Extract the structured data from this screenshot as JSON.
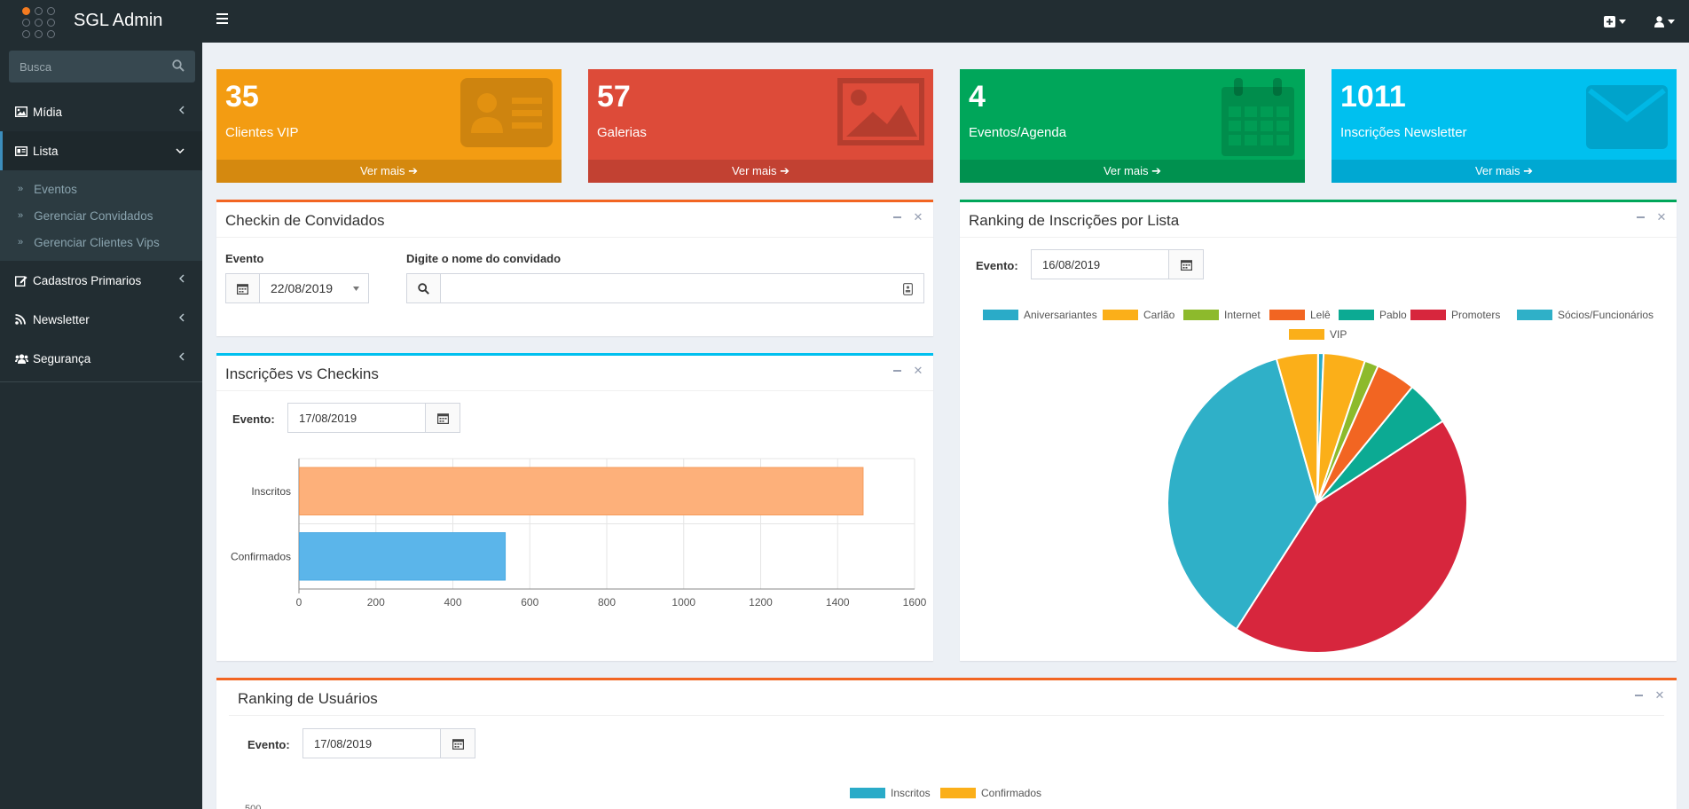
{
  "app": {
    "title": "SGL Admin"
  },
  "topnav": {
    "add_icon": "plus-square-icon",
    "user_icon": "user-icon"
  },
  "sidebar": {
    "search_placeholder": "Busca",
    "items": [
      {
        "label": "Mídia",
        "icon": "image-icon"
      },
      {
        "label": "Lista",
        "icon": "id-card-icon"
      },
      {
        "label": "Cadastros Primarios",
        "icon": "edit-icon"
      },
      {
        "label": "Newsletter",
        "icon": "rss-icon"
      },
      {
        "label": "Segurança",
        "icon": "users-icon"
      }
    ],
    "sub_items": [
      {
        "label": "Eventos"
      },
      {
        "label": "Gerenciar Convidados"
      },
      {
        "label": "Gerenciar Clientes Vips"
      }
    ]
  },
  "infoboxes": [
    {
      "value": "35",
      "label": "Clientes VIP",
      "more": "Ver mais",
      "color": "#f39c12"
    },
    {
      "value": "57",
      "label": "Galerias",
      "more": "Ver mais",
      "color": "#dd4b39"
    },
    {
      "value": "4",
      "label": "Eventos/Agenda",
      "more": "Ver mais",
      "color": "#00a65a"
    },
    {
      "value": "1011",
      "label": "Inscrições Newsletter",
      "more": "Ver mais",
      "color": "#00c0ef"
    }
  ],
  "checkin": {
    "title": "Checkin de Convidados",
    "evento_label": "Evento",
    "evento_value": "22/08/2019",
    "guest_label": "Digite o nome do convidado",
    "guest_value": ""
  },
  "inscricoes": {
    "title": "Inscrições vs Checkins",
    "evento_label": "Evento:",
    "evento_value": "17/08/2019"
  },
  "ranking_lista": {
    "title": "Ranking de Inscrições por Lista",
    "evento_label": "Evento:",
    "evento_value": "16/08/2019"
  },
  "ranking_usuarios": {
    "title": "Ranking de Usuários",
    "evento_label": "Evento:",
    "evento_value": "17/08/2019",
    "axis_top_tick": "500"
  },
  "chart_data": [
    {
      "type": "bar",
      "orientation": "horizontal",
      "categories": [
        "Inscritos",
        "Confirmados"
      ],
      "values": [
        1465,
        535
      ],
      "colors": [
        "#fdb07a",
        "#5bb5ea"
      ],
      "xlim": [
        0,
        1600
      ],
      "xticks": [
        "0",
        "200",
        "400",
        "600",
        "800",
        "1000",
        "1200",
        "1400",
        "1600"
      ],
      "grid": true
    },
    {
      "type": "pie",
      "labels": [
        "Aniversariantes",
        "Carlão",
        "Internet",
        "Lelê",
        "Pablo",
        "Promoters",
        "Sócios/Funcionários",
        "VIP"
      ],
      "values": [
        0.6,
        4.5,
        1.5,
        4.3,
        4.9,
        43.5,
        36.7,
        4.5
      ],
      "colors": [
        "#2aabc8",
        "#fbaf19",
        "#8dba2c",
        "#f26522",
        "#0caa93",
        "#d7263d",
        "#2fb0c8",
        "#fbaf19"
      ],
      "legend": "top"
    },
    {
      "type": "bar",
      "series": [
        {
          "name": "Inscritos",
          "color": "#2aabc8"
        },
        {
          "name": "Confirmados",
          "color": "#fbaf19"
        }
      ],
      "legend": "top"
    }
  ]
}
